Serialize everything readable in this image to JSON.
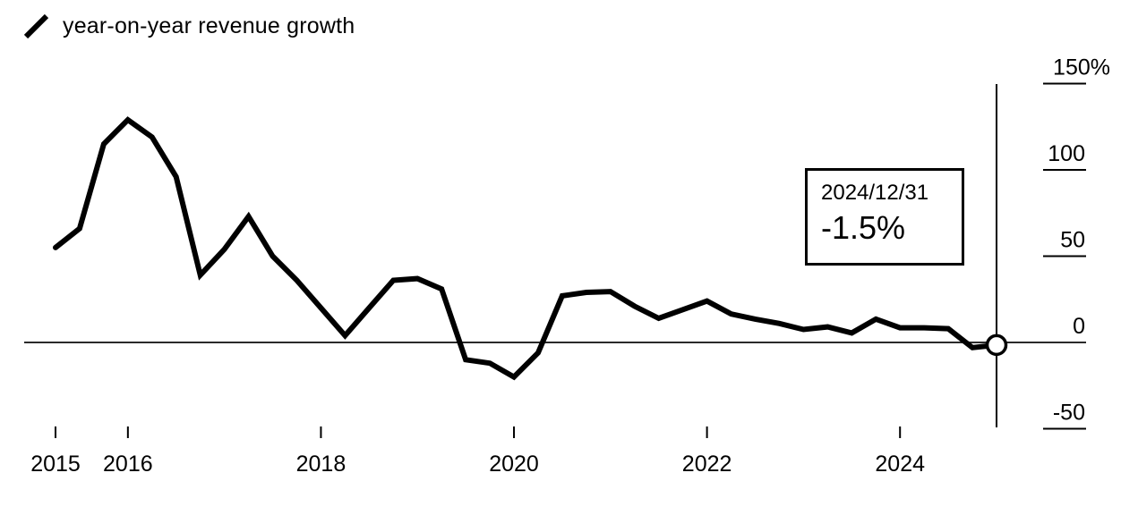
{
  "legend": {
    "icon": "line-slash-icon",
    "label": "year-on-year revenue growth"
  },
  "tooltip": {
    "date": "2024/12/31",
    "value": "-1.5%"
  },
  "colors": {
    "line": "#000000",
    "zero_line": "#2a2a2a",
    "axis": "#000000",
    "marker_fill": "#ffffff",
    "background": "#ffffff"
  },
  "chart_data": {
    "type": "line",
    "title": "year-on-year revenue growth",
    "xlabel": "",
    "ylabel": "%",
    "ylim": [
      -75,
      170
    ],
    "grid": "zero-line-only",
    "legend_position": "top-left",
    "x": [
      "2015-03-31",
      "2015-06-30",
      "2015-09-30",
      "2015-12-31",
      "2016-03-31",
      "2016-06-30",
      "2016-09-30",
      "2016-12-31",
      "2017-03-31",
      "2017-06-30",
      "2017-09-30",
      "2017-12-31",
      "2018-03-31",
      "2018-06-30",
      "2018-09-30",
      "2018-12-31",
      "2019-03-31",
      "2019-06-30",
      "2019-09-30",
      "2019-12-31",
      "2020-03-31",
      "2020-06-30",
      "2020-09-30",
      "2020-12-31",
      "2021-03-31",
      "2021-06-30",
      "2021-09-30",
      "2021-12-31",
      "2022-03-31",
      "2022-06-30",
      "2022-09-30",
      "2022-12-31",
      "2023-03-31",
      "2023-06-30",
      "2023-09-30",
      "2023-12-31",
      "2024-03-31",
      "2024-06-30",
      "2024-09-30",
      "2024-12-31"
    ],
    "series": [
      {
        "name": "year-on-year revenue growth",
        "values": [
          55,
          66,
          115,
          129,
          119,
          96,
          39,
          54,
          73,
          50,
          36,
          20,
          4,
          20,
          36,
          37,
          31,
          -10,
          -12,
          -20,
          -6,
          27,
          29,
          29.5,
          21,
          14,
          19,
          24,
          16.5,
          13.5,
          11,
          7.5,
          9,
          5.5,
          13.5,
          8.5,
          8.5,
          8,
          -3,
          -1.5
        ]
      }
    ],
    "y_ticks": [
      {
        "label": "150%",
        "value": 150
      },
      {
        "label": "100",
        "value": 100
      },
      {
        "label": "50",
        "value": 50
      },
      {
        "label": "0",
        "value": 0
      },
      {
        "label": "-50",
        "value": -50
      }
    ],
    "x_ticks": [
      {
        "label": "2015",
        "index": 0
      },
      {
        "label": "2016",
        "index": 3
      },
      {
        "label": "2018",
        "index": 11
      },
      {
        "label": "2020",
        "index": 19
      },
      {
        "label": "2022",
        "index": 27
      },
      {
        "label": "2024",
        "index": 35
      }
    ],
    "end_marker_index": 39,
    "end_marker_value": -1.5
  }
}
